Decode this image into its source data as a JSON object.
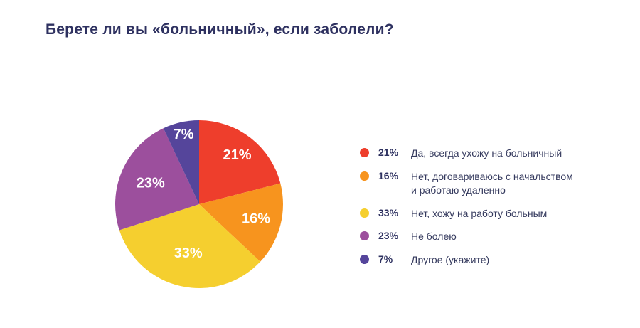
{
  "title": "Берете ли вы «больничный», если заболели?",
  "colors": {
    "title_text": "#2E3160",
    "legend_text": "#353A5E",
    "slice_label_text": "#FFFFFF",
    "background": "#FFFFFF"
  },
  "chart_data": {
    "type": "pie",
    "title": "Берете ли вы «больничный», если заболели?",
    "start_angle_deg": 0,
    "direction": "clockwise",
    "legend_position": "right",
    "slices": [
      {
        "value": 21,
        "percent_label": "21%",
        "color": "#EE3E2C",
        "label": "Да, всегда ухожу на больничный"
      },
      {
        "value": 16,
        "percent_label": "16%",
        "color": "#F7941E",
        "label": "Нет, договариваюсь с начальством\nи работаю удаленно"
      },
      {
        "value": 33,
        "percent_label": "33%",
        "color": "#F5CF2F",
        "label": "Нет, хожу на работу больным"
      },
      {
        "value": 23,
        "percent_label": "23%",
        "color": "#9C4F9D",
        "label": "Не болею"
      },
      {
        "value": 7,
        "percent_label": "7%",
        "color": "#55459B",
        "label": "Другое (укажите)"
      }
    ]
  }
}
